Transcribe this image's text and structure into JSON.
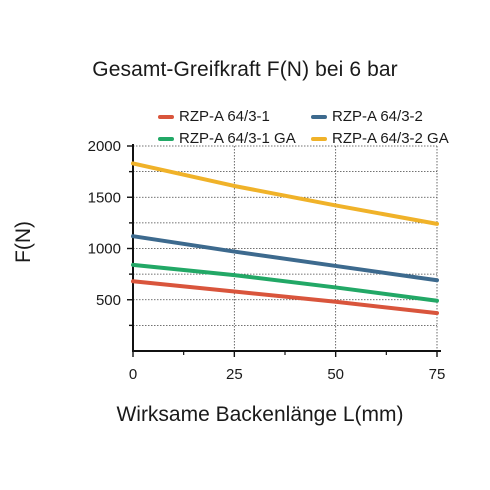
{
  "chart_data": {
    "type": "line",
    "title": "Gesamt-Greifkraft F(N) bei 6 bar",
    "xlabel": "Wirksame Backenlänge L(mm)",
    "ylabel": "F(N)",
    "x": [
      0,
      25,
      50,
      75
    ],
    "xlim": [
      0,
      75
    ],
    "ylim": [
      0,
      2000
    ],
    "x_ticks": [
      0,
      25,
      50,
      75
    ],
    "x_tick_labels": [
      "0",
      "25",
      "50",
      "75"
    ],
    "y_ticks": [
      500,
      1000,
      1500,
      2000
    ],
    "y_tick_labels": [
      "500",
      "1000",
      "1500",
      "2000"
    ],
    "grid": true,
    "legend_position": "top",
    "series": [
      {
        "name": "RZP-A 64/3-1",
        "color": "#d9553c",
        "values": [
          680,
          580,
          480,
          370
        ]
      },
      {
        "name": "RZP-A 64/3-2",
        "color": "#3d6a8e",
        "values": [
          1120,
          970,
          830,
          690
        ]
      },
      {
        "name": "RZP-A 64/3-1 GA",
        "color": "#22a866",
        "values": [
          840,
          740,
          620,
          490
        ]
      },
      {
        "name": "RZP-A 64/3-2 GA",
        "color": "#f0b229",
        "values": [
          1830,
          1610,
          1420,
          1240
        ]
      }
    ]
  }
}
